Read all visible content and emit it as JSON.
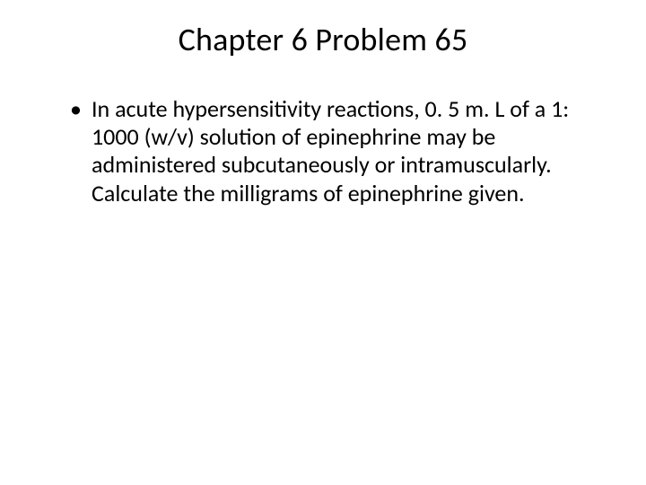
{
  "slide": {
    "title": "Chapter 6 Problem 65",
    "bullets": [
      "In acute hypersensitivity reactions, 0. 5 m. L of a 1: 1000 (w/v) solution of epinephrine may be administered subcutaneously or intramuscularly. Calculate the milligrams of epinephrine given."
    ],
    "style": {
      "background_color": "#ffffff",
      "text_color": "#000000",
      "title_fontsize": 36,
      "title_fontweight": 400,
      "body_fontsize": 26,
      "font_family": "Calibri"
    }
  }
}
